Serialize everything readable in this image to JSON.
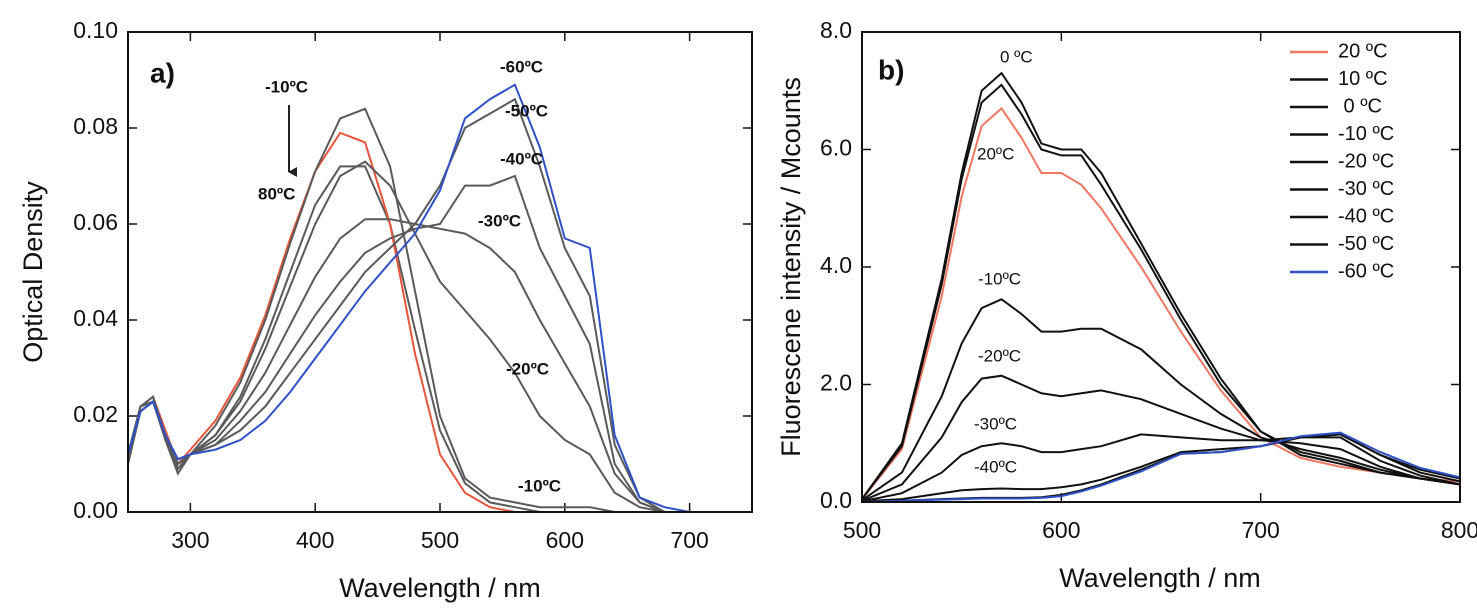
{
  "chart_data": [
    {
      "type": "line",
      "panel_label": "a)",
      "x_label": "Wavelength / nm",
      "y_label": "Optical Density",
      "xlim": [
        250,
        750
      ],
      "xticks": [
        300,
        400,
        500,
        600,
        700
      ],
      "ylim": [
        0,
        0.1
      ],
      "yticks": [
        {
          "value": 0,
          "label": "0.00"
        },
        {
          "value": 0.02,
          "label": "0.02"
        },
        {
          "value": 0.04,
          "label": "0.04"
        },
        {
          "value": 0.06,
          "label": "0.06"
        },
        {
          "value": 0.08,
          "label": "0.08"
        },
        {
          "value": 0.1,
          "label": "0.10"
        }
      ],
      "x": [
        250,
        260,
        270,
        280,
        290,
        300,
        320,
        340,
        360,
        380,
        400,
        420,
        440,
        460,
        480,
        500,
        520,
        540,
        560,
        580,
        600,
        620,
        640,
        660,
        680,
        700
      ],
      "series": [
        {
          "color": "#5a5a5a",
          "values": [
            0.01,
            0.021,
            0.023,
            0.015,
            0.008,
            0.012,
            0.016,
            0.024,
            0.036,
            0.05,
            0.064,
            0.072,
            0.072,
            0.06,
            0.038,
            0.017,
            0.006,
            0.002,
            0.001,
            0,
            0,
            0,
            0,
            0,
            0,
            0
          ]
        },
        {
          "color": "#e8553a",
          "values": [
            0.012,
            0.022,
            0.024,
            0.017,
            0.01,
            0.013,
            0.019,
            0.028,
            0.041,
            0.057,
            0.071,
            0.079,
            0.077,
            0.06,
            0.033,
            0.012,
            0.004,
            0.001,
            0,
            0,
            0,
            0,
            0,
            0,
            0,
            0
          ]
        },
        {
          "color": "#5a5a5a",
          "values": [
            0.012,
            0.022,
            0.024,
            0.016,
            0.009,
            0.012,
            0.018,
            0.027,
            0.04,
            0.056,
            0.071,
            0.082,
            0.084,
            0.072,
            0.046,
            0.02,
            0.007,
            0.003,
            0.002,
            0.001,
            0.001,
            0.001,
            0,
            0,
            0,
            0
          ]
        },
        {
          "color": "#5a5a5a",
          "values": [
            0.012,
            0.022,
            0.023,
            0.016,
            0.009,
            0.012,
            0.016,
            0.023,
            0.034,
            0.047,
            0.06,
            0.07,
            0.073,
            0.068,
            0.058,
            0.048,
            0.042,
            0.036,
            0.029,
            0.02,
            0.015,
            0.012,
            0.004,
            0.001,
            0,
            0
          ]
        },
        {
          "color": "#5a5a5a",
          "values": [
            0.012,
            0.021,
            0.023,
            0.016,
            0.01,
            0.012,
            0.015,
            0.021,
            0.029,
            0.039,
            0.049,
            0.057,
            0.061,
            0.061,
            0.06,
            0.059,
            0.058,
            0.055,
            0.05,
            0.04,
            0.031,
            0.022,
            0.008,
            0.002,
            0,
            0
          ]
        },
        {
          "color": "#5a5a5a",
          "values": [
            0.012,
            0.021,
            0.023,
            0.016,
            0.01,
            0.012,
            0.014,
            0.019,
            0.025,
            0.033,
            0.041,
            0.048,
            0.054,
            0.057,
            0.059,
            0.06,
            0.068,
            0.068,
            0.07,
            0.055,
            0.045,
            0.035,
            0.01,
            0.002,
            0,
            0
          ]
        },
        {
          "color": "#5a5a5a",
          "values": [
            0.012,
            0.021,
            0.023,
            0.016,
            0.011,
            0.012,
            0.014,
            0.017,
            0.022,
            0.029,
            0.036,
            0.043,
            0.05,
            0.055,
            0.06,
            0.068,
            0.08,
            0.083,
            0.086,
            0.072,
            0.055,
            0.045,
            0.014,
            0.003,
            0,
            0
          ]
        },
        {
          "color": "#3050c8",
          "values": [
            0.012,
            0.021,
            0.023,
            0.016,
            0.011,
            0.012,
            0.013,
            0.015,
            0.019,
            0.025,
            0.032,
            0.039,
            0.046,
            0.052,
            0.058,
            0.067,
            0.082,
            0.086,
            0.089,
            0.076,
            0.057,
            0.055,
            0.016,
            0.003,
            0.001,
            0
          ]
        }
      ],
      "annotations": [
        "-10ºC",
        "80ºC",
        "-60ºC",
        "-50ºC",
        "-40ºC",
        "-30ºC",
        "-20ºC",
        "-10ºC"
      ]
    },
    {
      "type": "line",
      "panel_label": "b)",
      "x_label": "Wavelength / nm",
      "y_label": "Fluorescene intensity / Mcounts",
      "xlim": [
        500,
        800
      ],
      "xticks": [
        500,
        600,
        700,
        800
      ],
      "ylim": [
        0,
        8
      ],
      "yticks": [
        {
          "value": 0,
          "label": "0.0"
        },
        {
          "value": 2,
          "label": "2.0"
        },
        {
          "value": 4,
          "label": "4.0"
        },
        {
          "value": 6,
          "label": "6.0"
        },
        {
          "value": 8,
          "label": "8.0"
        }
      ],
      "legend": "upper right",
      "x": [
        500,
        520,
        540,
        550,
        560,
        570,
        580,
        590,
        600,
        610,
        620,
        640,
        660,
        680,
        700,
        720,
        740,
        760,
        780,
        800
      ],
      "series": [
        {
          "name": "20 ºC",
          "color": "#f07860",
          "values": [
            0.05,
            0.9,
            3.5,
            5.2,
            6.4,
            6.7,
            6.2,
            5.6,
            5.6,
            5.4,
            5.0,
            4.0,
            2.9,
            1.9,
            1.1,
            0.75,
            0.6,
            0.5,
            0.4,
            0.35
          ]
        },
        {
          "name": "10 ºC",
          "color": "#111111",
          "values": [
            0.05,
            0.95,
            3.7,
            5.5,
            6.8,
            7.1,
            6.6,
            6.0,
            5.9,
            5.9,
            5.4,
            4.3,
            3.1,
            2.0,
            1.2,
            0.8,
            0.65,
            0.5,
            0.4,
            0.3
          ]
        },
        {
          "name": " 0 ºC",
          "color": "#111111",
          "values": [
            0.05,
            1.0,
            3.8,
            5.6,
            7.0,
            7.3,
            6.8,
            6.1,
            6.0,
            6.0,
            5.6,
            4.4,
            3.2,
            2.1,
            1.2,
            0.85,
            0.7,
            0.5,
            0.4,
            0.3
          ]
        },
        {
          "name": "-10 ºC",
          "color": "#111111",
          "values": [
            0.03,
            0.5,
            1.8,
            2.7,
            3.3,
            3.45,
            3.2,
            2.9,
            2.9,
            2.95,
            2.95,
            2.6,
            2.0,
            1.5,
            1.1,
            0.9,
            0.75,
            0.55,
            0.4,
            0.3
          ]
        },
        {
          "name": "-20 ºC",
          "color": "#111111",
          "values": [
            0.02,
            0.3,
            1.1,
            1.7,
            2.1,
            2.15,
            2.0,
            1.85,
            1.8,
            1.85,
            1.9,
            1.75,
            1.5,
            1.25,
            1.05,
            1.0,
            0.9,
            0.6,
            0.4,
            0.3
          ]
        },
        {
          "name": "-30 ºC",
          "color": "#111111",
          "values": [
            0.01,
            0.15,
            0.5,
            0.8,
            0.95,
            1.0,
            0.95,
            0.85,
            0.85,
            0.9,
            0.95,
            1.15,
            1.1,
            1.05,
            1.05,
            1.1,
            1.1,
            0.7,
            0.45,
            0.3
          ]
        },
        {
          "name": "-40 ºC",
          "color": "#111111",
          "values": [
            0.01,
            0.05,
            0.15,
            0.2,
            0.22,
            0.23,
            0.22,
            0.22,
            0.25,
            0.3,
            0.38,
            0.6,
            0.85,
            0.9,
            0.95,
            1.1,
            1.15,
            0.8,
            0.5,
            0.35
          ]
        },
        {
          "name": "-50 ºC",
          "color": "#111111",
          "values": [
            0,
            0.02,
            0.05,
            0.06,
            0.07,
            0.07,
            0.07,
            0.08,
            0.12,
            0.2,
            0.3,
            0.55,
            0.82,
            0.85,
            0.95,
            1.1,
            1.15,
            0.8,
            0.55,
            0.4
          ]
        },
        {
          "name": "-60 ºC",
          "color": "#3050c8",
          "values": [
            0,
            0.02,
            0.04,
            0.05,
            0.06,
            0.06,
            0.06,
            0.07,
            0.1,
            0.18,
            0.28,
            0.52,
            0.82,
            0.85,
            0.95,
            1.12,
            1.18,
            0.85,
            0.58,
            0.42
          ]
        }
      ],
      "annotations": [
        "0 ºC",
        "20ºC",
        "-10ºC",
        "-20ºC",
        "-30ºC",
        "-40ºC"
      ]
    }
  ]
}
